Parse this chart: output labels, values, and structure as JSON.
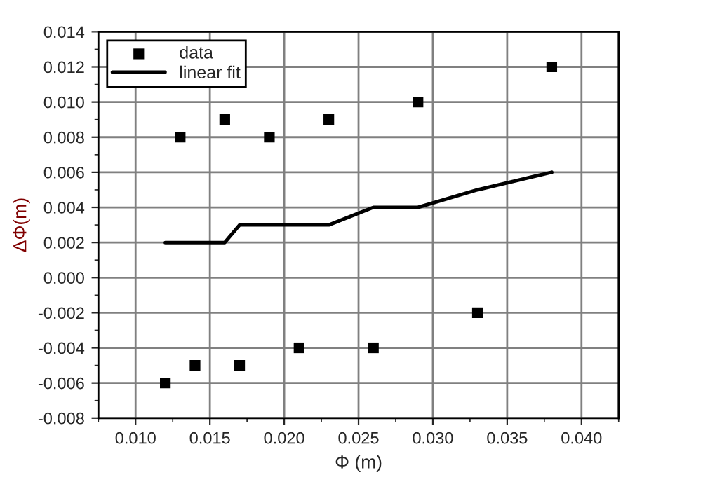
{
  "chart_data": {
    "type": "scatter",
    "xlabel": "Φ (m)",
    "ylabel": "ΔΦ(m)",
    "series": [
      {
        "name": "data",
        "color": "#000000",
        "marker": "square",
        "x": [
          0.012,
          0.013,
          0.014,
          0.016,
          0.017,
          0.019,
          0.021,
          0.023,
          0.026,
          0.029,
          0.033,
          0.038
        ],
        "values": [
          -0.006,
          0.008,
          -0.005,
          0.009,
          -0.005,
          0.008,
          -0.004,
          0.009,
          -0.004,
          0.01,
          -0.002,
          0.012
        ]
      },
      {
        "name": "linear fit",
        "type": "line",
        "color": "#000000",
        "line_style": "solid",
        "x": [
          0.012,
          0.016,
          0.017,
          0.023,
          0.026,
          0.029,
          0.033,
          0.038
        ],
        "values": [
          0.002,
          0.002,
          0.003,
          0.003,
          0.004,
          0.004,
          0.005,
          0.006
        ]
      }
    ],
    "xlim": [
      0.0075,
      0.0425
    ],
    "xticks": [
      {
        "value": 0.01,
        "label": "0.010"
      },
      {
        "value": 0.015,
        "label": "0.015"
      },
      {
        "value": 0.02,
        "label": "0.020"
      },
      {
        "value": 0.025,
        "label": "0.025"
      },
      {
        "value": 0.03,
        "label": "0.030"
      },
      {
        "value": 0.035,
        "label": "0.035"
      },
      {
        "value": 0.04,
        "label": "0.040"
      }
    ],
    "ylim": [
      -0.008,
      0.014
    ],
    "yticks": [
      {
        "value": -0.008,
        "label": "-0.008"
      },
      {
        "value": -0.006,
        "label": "-0.006"
      },
      {
        "value": -0.004,
        "label": "-0.004"
      },
      {
        "value": -0.002,
        "label": "-0.002"
      },
      {
        "value": 0,
        "label": "0.000"
      },
      {
        "value": 0.002,
        "label": "0.002"
      },
      {
        "value": 0.004,
        "label": "0.004"
      },
      {
        "value": 0.006,
        "label": "0.006"
      },
      {
        "value": 0.008,
        "label": "0.008"
      },
      {
        "value": 0.01,
        "label": "0.010"
      },
      {
        "value": 0.012,
        "label": "0.012"
      },
      {
        "value": 0.014,
        "label": "0.014"
      }
    ],
    "grid": true,
    "legend": "top left"
  }
}
